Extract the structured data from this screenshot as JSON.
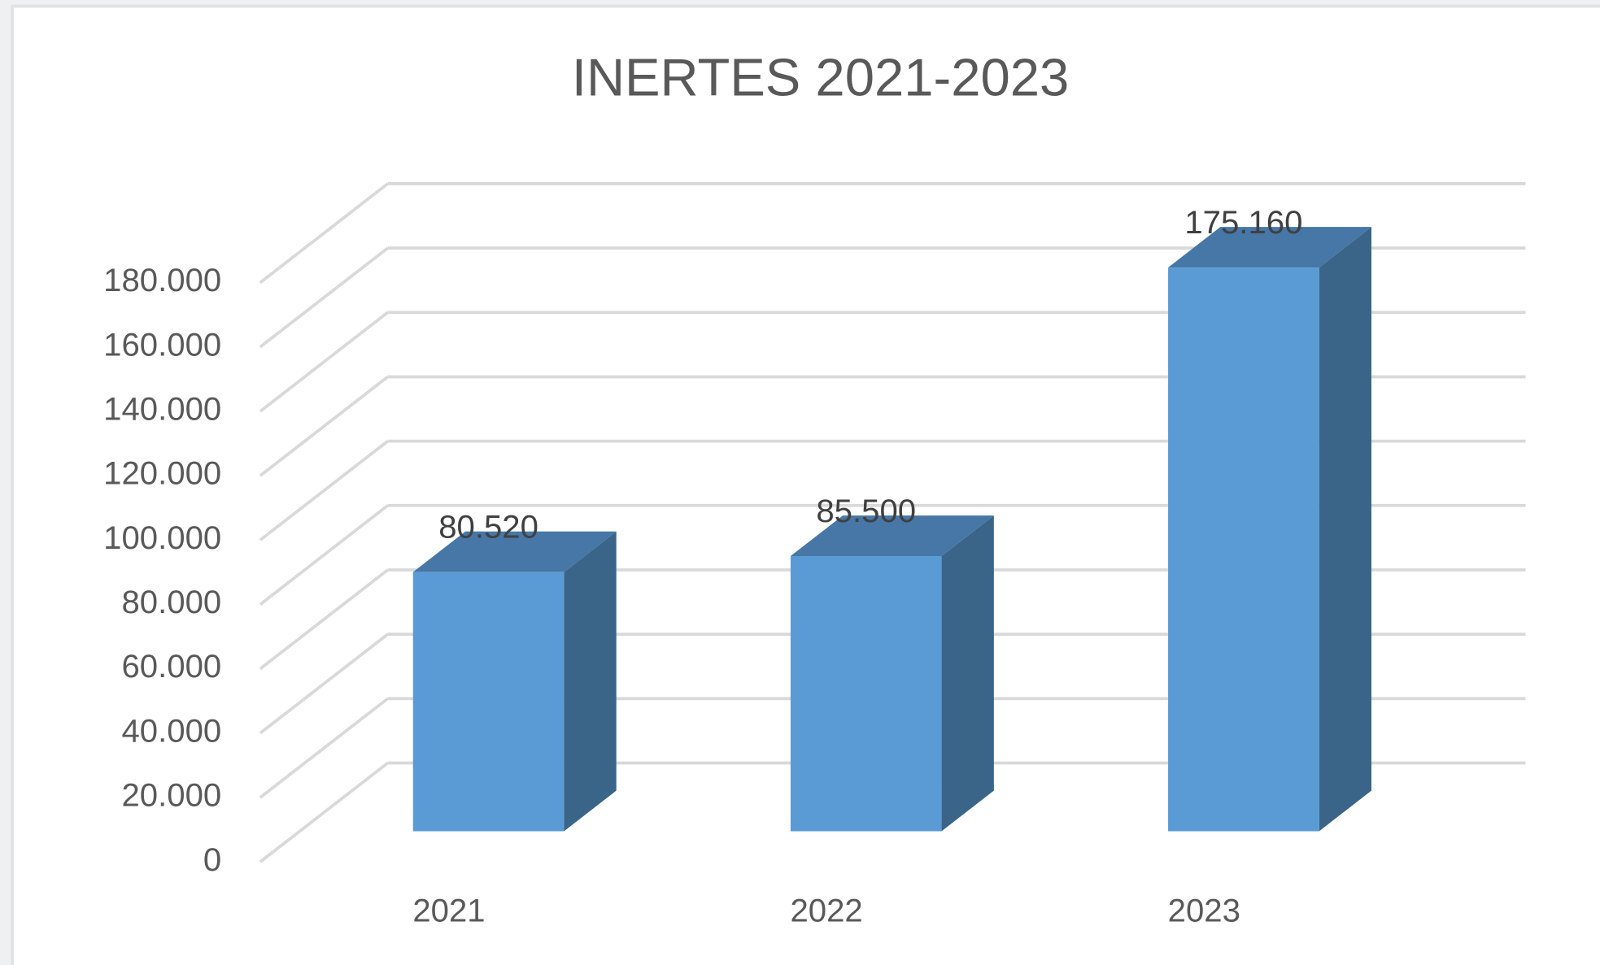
{
  "chart_data": {
    "type": "bar",
    "title": "INERTES 2021-2023",
    "categories": [
      "2021",
      "2022",
      "2023"
    ],
    "values": [
      80520,
      85500,
      175160
    ],
    "value_labels": [
      "80.520",
      "85.500",
      "175.160"
    ],
    "color": "#5b9bd5",
    "ylim": [
      0,
      180000
    ],
    "yticks": [
      0,
      {
        "value": 20000,
        "label": "20.000"
      },
      {
        "value": 40000,
        "label": "40.000"
      },
      {
        "value": 60000,
        "label": "60.000"
      },
      {
        "value": 80000,
        "label": "80.000"
      },
      {
        "value": 100000,
        "label": "100.000"
      },
      {
        "value": 120000,
        "label": "120.000"
      },
      {
        "value": 140000,
        "label": "140.000"
      },
      {
        "value": 160000,
        "label": "160.000"
      },
      {
        "value": 180000,
        "label": "180.000"
      }
    ],
    "grid": true
  }
}
